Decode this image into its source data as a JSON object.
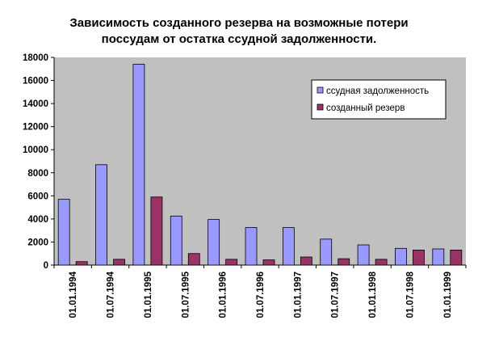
{
  "chart_data": {
    "type": "bar",
    "title_lines": [
      "Зависимость созданного резерва на возможные потери",
      "поссудам от остатка ссудной задолженности."
    ],
    "categories": [
      "01.01.1994",
      "01.07.1994",
      "01.01.1995",
      "01.07.1995",
      "01.01.1996",
      "01.07.1996",
      "01.01.1997",
      "01.07.1997",
      "01.01.1998",
      "01.07.1998",
      "01.01.1999"
    ],
    "series": [
      {
        "name": "ссудная задолженность",
        "color": "#9999ff",
        "values": [
          5700,
          8700,
          17400,
          4250,
          3950,
          3250,
          3250,
          2250,
          1750,
          1450,
          1400
        ]
      },
      {
        "name": "созданный резерв",
        "color": "#993366",
        "values": [
          300,
          500,
          5900,
          1000,
          500,
          450,
          700,
          550,
          500,
          1300,
          1300
        ]
      }
    ],
    "ylim": [
      0,
      18000
    ],
    "yticks": [
      0,
      2000,
      4000,
      6000,
      8000,
      10000,
      12000,
      14000,
      16000,
      18000
    ],
    "plot_background": "#c0c0c0",
    "grid": false,
    "legend_position": "top-right",
    "xlabel": "",
    "ylabel": ""
  }
}
